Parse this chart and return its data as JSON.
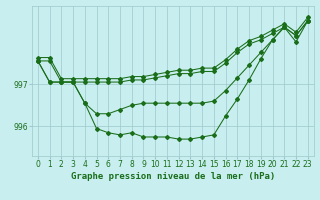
{
  "title": "Graphe pression niveau de la mer (hPa)",
  "hours": [
    0,
    1,
    2,
    3,
    4,
    5,
    6,
    7,
    8,
    9,
    10,
    11,
    12,
    13,
    14,
    15,
    16,
    17,
    18,
    19,
    20,
    21,
    22,
    23
  ],
  "line_top": [
    997.55,
    997.55,
    997.05,
    997.05,
    997.05,
    997.05,
    997.05,
    997.05,
    997.1,
    997.1,
    997.15,
    997.2,
    997.25,
    997.25,
    997.3,
    997.3,
    997.5,
    997.75,
    997.95,
    998.05,
    998.2,
    998.35,
    998.15,
    998.5
  ],
  "line_mid": [
    997.55,
    997.05,
    997.05,
    997.05,
    996.55,
    996.3,
    996.3,
    996.4,
    996.5,
    996.55,
    996.55,
    996.55,
    996.55,
    996.55,
    996.55,
    996.6,
    996.85,
    997.15,
    997.45,
    997.75,
    998.05,
    998.35,
    998.15,
    998.5
  ],
  "line_dip": [
    997.55,
    997.05,
    997.05,
    997.05,
    996.55,
    995.95,
    995.85,
    995.8,
    995.85,
    995.75,
    995.75,
    995.75,
    995.7,
    995.7,
    995.75,
    995.8,
    996.25,
    996.65,
    997.1,
    997.6,
    998.05,
    998.35,
    998.0,
    998.5
  ],
  "yticks": [
    996,
    997
  ],
  "ylim": [
    995.3,
    998.85
  ],
  "xlim": [
    -0.5,
    23.5
  ],
  "line_color": "#1a6e1a",
  "bg_color": "#c8eef0",
  "grid_color": "#9dc8cc",
  "text_color": "#1a6e1a",
  "title_fontsize": 6.5,
  "tick_fontsize": 5.5
}
